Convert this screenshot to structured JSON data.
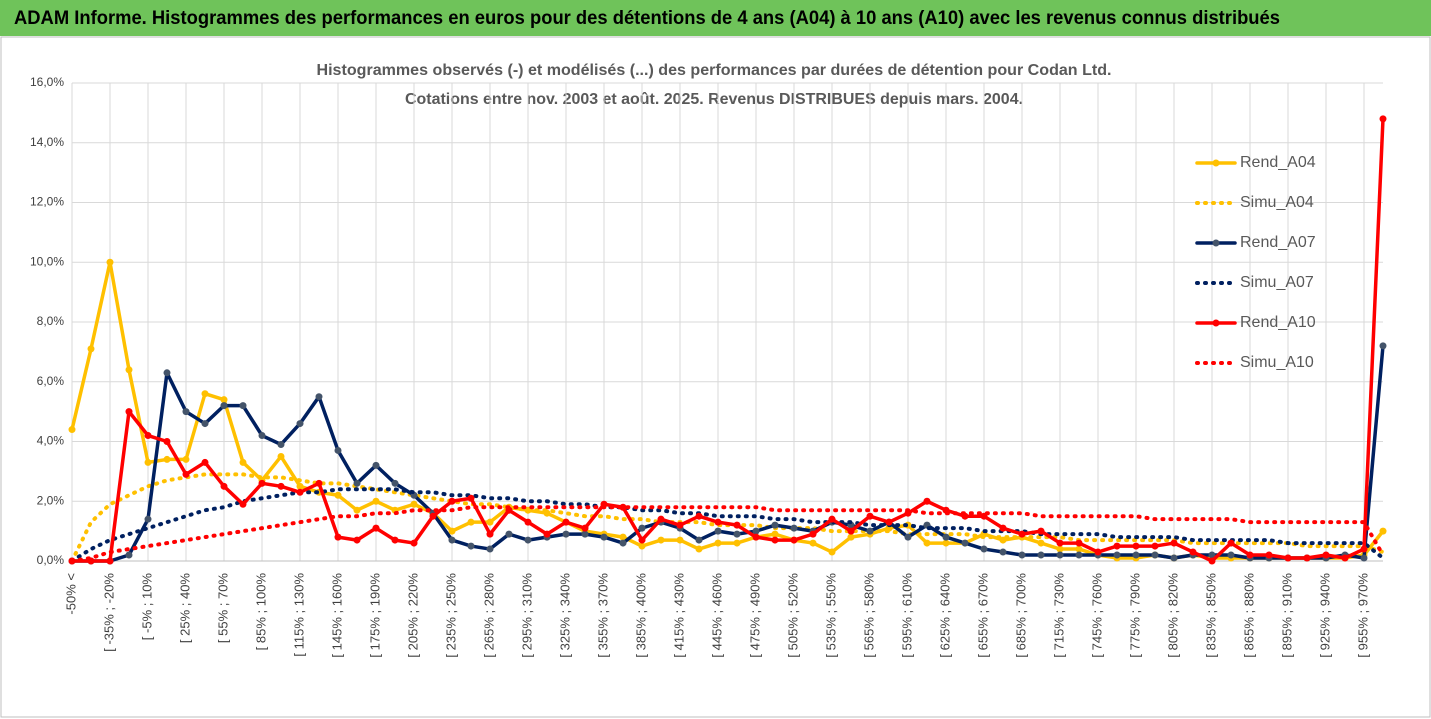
{
  "header": "ADAM Informe. Histogrammes des performances en euros pour des détentions de 4 ans (A04) à 10 ans (A10) avec les revenus connus distribués",
  "chart_data": {
    "type": "line",
    "title": "Histogrammes observés (-) et modélisés (...) des performances par durées de détention pour Codan Ltd.",
    "subtitle": "Cotations entre nov. 2003 et août. 2025. Revenus DISTRIBUES depuis mars. 2004.",
    "categories": [
      "-50% <",
      null,
      "[ -35% ; -20%",
      null,
      "[ -5% ; 10%",
      null,
      "[ 25% ; 40%",
      null,
      "[ 55% ; 70%",
      null,
      "[ 85% ; 100%",
      null,
      "[ 115% ; 130%",
      null,
      "[ 145% ; 160%",
      null,
      "[ 175% ; 190%",
      null,
      "[ 205% ; 220%",
      null,
      "[ 235% ; 250%",
      null,
      "[ 265% ; 280%",
      null,
      "[ 295% ; 310%",
      null,
      "[ 325% ; 340%",
      null,
      "[ 355% ; 370%",
      null,
      "[ 385% ; 400%",
      null,
      "[ 415% ; 430%",
      null,
      "[ 445% ; 460%",
      null,
      "[ 475% ; 490%",
      null,
      "[ 505% ; 520%",
      null,
      "[ 535% ; 550%",
      null,
      "[ 565% ; 580%",
      null,
      "[ 595% ; 610%",
      null,
      "[ 625% ; 640%",
      null,
      "[ 655% ; 670%",
      null,
      "[ 685% ; 700%",
      null,
      "[ 715% ; 730%",
      null,
      "[ 745% ; 760%",
      null,
      "[ 775% ; 790%",
      null,
      "[ 805% ; 820%",
      null,
      "[ 835% ; 850%",
      null,
      "[ 865% ; 880%",
      null,
      "[ 895% ; 910%",
      null,
      "[ 925% ; 940%",
      null,
      "[ 955% ; 970%",
      null
    ],
    "series": [
      {
        "name": "Rend_A04",
        "color": "#ffc000",
        "line_style": "solid",
        "markers": true,
        "values": [
          4.4,
          7.1,
          10.0,
          6.4,
          3.3,
          3.4,
          3.4,
          5.6,
          5.4,
          3.3,
          2.7,
          3.5,
          2.5,
          2.3,
          2.2,
          1.7,
          2.0,
          1.7,
          1.9,
          1.6,
          1.0,
          1.3,
          1.3,
          1.8,
          1.7,
          1.6,
          1.3,
          1.0,
          0.9,
          0.8,
          0.5,
          0.7,
          0.7,
          0.4,
          0.6,
          0.6,
          0.8,
          0.9,
          0.7,
          0.6,
          0.3,
          0.8,
          0.9,
          1.1,
          1.2,
          0.6,
          0.6,
          0.6,
          0.9,
          0.7,
          0.8,
          0.6,
          0.4,
          0.4,
          0.2,
          0.1,
          0.1,
          0.2,
          0.1,
          0.2,
          0.1,
          0.1,
          0.1,
          0.1,
          0.1,
          0.1,
          0.1,
          0.1,
          0.2,
          1.0
        ]
      },
      {
        "name": "Simu_A04",
        "color": "#ffc000",
        "line_style": "dotted",
        "markers": false,
        "values": [
          0,
          1.3,
          1.9,
          2.2,
          2.5,
          2.7,
          2.8,
          2.9,
          2.9,
          2.9,
          2.8,
          2.8,
          2.7,
          2.6,
          2.6,
          2.5,
          2.4,
          2.3,
          2.2,
          2.1,
          2.0,
          1.9,
          1.9,
          1.8,
          1.7,
          1.7,
          1.6,
          1.5,
          1.5,
          1.4,
          1.4,
          1.3,
          1.3,
          1.3,
          1.2,
          1.2,
          1.2,
          1.1,
          1.1,
          1.1,
          1.0,
          1.0,
          1.0,
          1.0,
          0.9,
          0.9,
          0.9,
          0.9,
          0.8,
          0.8,
          0.8,
          0.8,
          0.8,
          0.7,
          0.7,
          0.7,
          0.7,
          0.7,
          0.7,
          0.6,
          0.6,
          0.6,
          0.6,
          0.6,
          0.6,
          0.5,
          0.5,
          0.5,
          0.5,
          0.3
        ]
      },
      {
        "name": "Rend_A07",
        "color": "#002060",
        "line_style": "solid",
        "markers": true,
        "values": [
          0,
          0,
          0,
          0.2,
          1.4,
          6.3,
          5.0,
          4.6,
          5.2,
          5.2,
          4.2,
          3.9,
          4.6,
          5.5,
          3.7,
          2.6,
          3.2,
          2.6,
          2.2,
          1.6,
          0.7,
          0.5,
          0.4,
          0.9,
          0.7,
          0.8,
          0.9,
          0.9,
          0.8,
          0.6,
          1.1,
          1.3,
          1.1,
          0.7,
          1.0,
          0.9,
          1.0,
          1.2,
          1.1,
          1.0,
          1.3,
          1.2,
          1.0,
          1.3,
          0.8,
          1.2,
          0.8,
          0.6,
          0.4,
          0.3,
          0.2,
          0.2,
          0.2,
          0.2,
          0.2,
          0.2,
          0.2,
          0.2,
          0.1,
          0.2,
          0.2,
          0.2,
          0.1,
          0.1,
          0.1,
          0.1,
          0.1,
          0.2,
          0.1,
          7.2
        ]
      },
      {
        "name": "Simu_A07",
        "color": "#002060",
        "line_style": "dotted",
        "markers": false,
        "values": [
          0,
          0.4,
          0.7,
          0.9,
          1.1,
          1.3,
          1.5,
          1.7,
          1.8,
          2.0,
          2.1,
          2.2,
          2.3,
          2.3,
          2.4,
          2.4,
          2.4,
          2.4,
          2.3,
          2.3,
          2.2,
          2.2,
          2.1,
          2.1,
          2.0,
          2.0,
          1.9,
          1.9,
          1.8,
          1.8,
          1.7,
          1.7,
          1.6,
          1.6,
          1.5,
          1.5,
          1.5,
          1.4,
          1.4,
          1.3,
          1.3,
          1.3,
          1.2,
          1.2,
          1.2,
          1.1,
          1.1,
          1.1,
          1.0,
          1.0,
          1.0,
          0.9,
          0.9,
          0.9,
          0.9,
          0.8,
          0.8,
          0.8,
          0.8,
          0.7,
          0.7,
          0.7,
          0.7,
          0.7,
          0.6,
          0.6,
          0.6,
          0.6,
          0.6,
          0.1
        ]
      },
      {
        "name": "Rend_A10",
        "color": "#ff0000",
        "line_style": "solid",
        "markers": true,
        "values": [
          0,
          0,
          0,
          5.0,
          4.2,
          4.0,
          2.9,
          3.3,
          2.5,
          1.9,
          2.6,
          2.5,
          2.3,
          2.6,
          0.8,
          0.7,
          1.1,
          0.7,
          0.6,
          1.5,
          2.0,
          2.1,
          0.9,
          1.7,
          1.3,
          0.9,
          1.3,
          1.1,
          1.9,
          1.8,
          0.7,
          1.4,
          1.2,
          1.5,
          1.3,
          1.2,
          0.8,
          0.7,
          0.7,
          0.9,
          1.4,
          1.0,
          1.5,
          1.3,
          1.6,
          2.0,
          1.7,
          1.5,
          1.5,
          1.1,
          0.9,
          1.0,
          0.6,
          0.6,
          0.3,
          0.5,
          0.5,
          0.5,
          0.6,
          0.3,
          0.0,
          0.6,
          0.2,
          0.2,
          0.1,
          0.1,
          0.2,
          0.1,
          0.4,
          14.8
        ]
      },
      {
        "name": "Simu_A10",
        "color": "#ff0000",
        "line_style": "dotted",
        "markers": false,
        "values": [
          0,
          0.1,
          0.3,
          0.4,
          0.5,
          0.6,
          0.7,
          0.8,
          0.9,
          1.0,
          1.1,
          1.2,
          1.3,
          1.4,
          1.5,
          1.5,
          1.6,
          1.6,
          1.7,
          1.7,
          1.7,
          1.8,
          1.8,
          1.8,
          1.8,
          1.8,
          1.8,
          1.8,
          1.8,
          1.8,
          1.8,
          1.8,
          1.8,
          1.8,
          1.8,
          1.8,
          1.8,
          1.7,
          1.7,
          1.7,
          1.7,
          1.7,
          1.7,
          1.7,
          1.7,
          1.6,
          1.6,
          1.6,
          1.6,
          1.6,
          1.6,
          1.5,
          1.5,
          1.5,
          1.5,
          1.5,
          1.5,
          1.4,
          1.4,
          1.4,
          1.4,
          1.4,
          1.3,
          1.3,
          1.3,
          1.3,
          1.3,
          1.3,
          1.3,
          0.2
        ]
      }
    ],
    "ylim": [
      0,
      16
    ],
    "yticks": [
      {
        "value": 0,
        "label": "0,0%"
      },
      {
        "value": 2,
        "label": "2,0%"
      },
      {
        "value": 4,
        "label": "4,0%"
      },
      {
        "value": 6,
        "label": "6,0%"
      },
      {
        "value": 8,
        "label": "8,0%"
      },
      {
        "value": 10,
        "label": "10,0%"
      },
      {
        "value": 12,
        "label": "12,0%"
      },
      {
        "value": 14,
        "label": "14,0%"
      },
      {
        "value": 16,
        "label": "16,0%"
      }
    ],
    "grid": true,
    "legend": "right"
  }
}
